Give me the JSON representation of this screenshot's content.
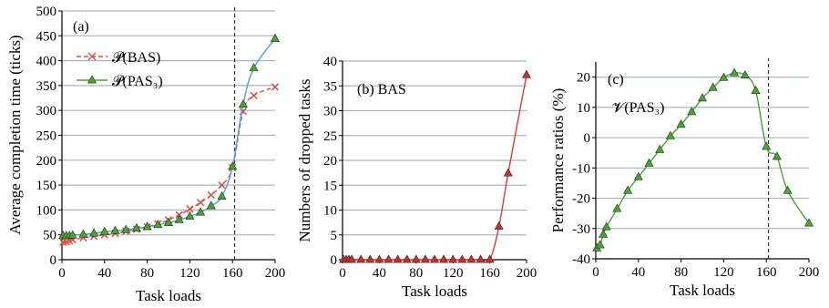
{
  "colors": {
    "grid": "#a9b6bf",
    "bas": "#d8504a",
    "pas": "#45a82a",
    "pas_line_a": "#4d9ed6",
    "dropped_line": "#e03a32",
    "dropped_marker": "#c83028",
    "vline": "#333333"
  },
  "chart_data": [
    {
      "type": "line",
      "panel_label": "(a)",
      "xlabel": "Task loads",
      "ylabel": "Average completion time (ticks)",
      "xlim": [
        0,
        200
      ],
      "ylim": [
        0,
        500
      ],
      "xticks": [
        0,
        40,
        80,
        120,
        160,
        200
      ],
      "yticks": [
        0,
        50,
        100,
        150,
        200,
        250,
        300,
        350,
        400,
        450,
        500
      ],
      "grid": true,
      "vline": 162,
      "legend": "top-left",
      "series": [
        {
          "name": "𝓟(BAS)",
          "marker": "x",
          "style": "dashed",
          "x": [
            1,
            4,
            7,
            10,
            20,
            30,
            40,
            50,
            60,
            70,
            80,
            90,
            100,
            110,
            120,
            130,
            140,
            150,
            160,
            170,
            180,
            200
          ],
          "y": [
            35,
            36,
            38,
            40,
            44,
            47,
            50,
            53,
            57,
            61,
            66,
            72,
            80,
            90,
            102,
            115,
            130,
            150,
            185,
            298,
            330,
            347
          ]
        },
        {
          "name": "𝓟(PAS₃)",
          "marker": "triangle",
          "style": "solid",
          "x": [
            1,
            4,
            7,
            10,
            20,
            30,
            40,
            50,
            60,
            70,
            80,
            90,
            100,
            110,
            120,
            130,
            140,
            150,
            160,
            170,
            180,
            200
          ],
          "y": [
            48,
            48,
            48,
            49,
            51,
            53,
            56,
            58,
            60,
            63,
            66,
            70,
            74,
            80,
            87,
            95,
            108,
            127,
            187,
            312,
            385,
            444
          ]
        }
      ]
    },
    {
      "type": "line",
      "panel_label": "(b) BAS",
      "xlabel": "Task loads",
      "ylabel": "Numbers of dropped tasks",
      "xlim": [
        0,
        200
      ],
      "ylim": [
        0,
        40
      ],
      "xticks": [
        0,
        40,
        80,
        120,
        160,
        200
      ],
      "yticks": [
        0,
        5,
        10,
        15,
        20,
        25,
        30,
        35,
        40
      ],
      "grid": true,
      "series": [
        {
          "name": "",
          "marker": "triangle",
          "x": [
            1,
            4,
            7,
            10,
            20,
            30,
            40,
            50,
            60,
            70,
            80,
            90,
            100,
            110,
            120,
            130,
            140,
            150,
            160,
            170,
            180,
            200
          ],
          "y": [
            0,
            0,
            0,
            0,
            0,
            0,
            0,
            0,
            0,
            0,
            0,
            0,
            0,
            0,
            0,
            0,
            0,
            0,
            0,
            6.7,
            17.4,
            37.2
          ]
        }
      ]
    },
    {
      "type": "line",
      "panel_label": "(c)",
      "annotation": "𝓥(PAS₃)",
      "xlabel": "Task loads",
      "ylabel": "Performance ratios (%)",
      "xlim": [
        0,
        200
      ],
      "ylim": [
        -40,
        25
      ],
      "xticks": [
        0,
        40,
        80,
        120,
        160,
        200
      ],
      "yticks": [
        -40,
        -30,
        -20,
        -10,
        0,
        10,
        20
      ],
      "grid": true,
      "vline": 162,
      "series": [
        {
          "name": "",
          "marker": "triangle",
          "x": [
            1,
            4,
            7,
            10,
            20,
            30,
            40,
            50,
            60,
            70,
            80,
            90,
            100,
            110,
            120,
            130,
            140,
            150,
            160,
            170,
            180,
            200
          ],
          "y": [
            -36.5,
            -35.5,
            -32,
            -29.5,
            -23.5,
            -17.5,
            -13,
            -8.5,
            -4,
            0.5,
            4.3,
            8.5,
            13,
            16.5,
            19.8,
            21.3,
            20.6,
            15.5,
            -3,
            -6.3,
            -17.5,
            -28.3
          ]
        }
      ]
    }
  ]
}
